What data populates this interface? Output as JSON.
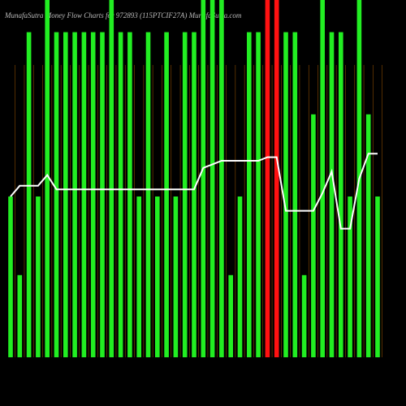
{
  "chart_data": {
    "type": "bar",
    "title": "MunafaSutra  Money Flow  Charts for 972893          (115PTCIF27A) MunafaSutra.com",
    "ylim": [
      0,
      100
    ],
    "values": [
      45,
      23,
      91,
      45,
      100,
      91,
      91,
      91,
      91,
      91,
      91,
      100,
      91,
      91,
      45,
      91,
      45,
      91,
      45,
      91,
      91,
      100,
      100,
      100,
      23,
      45,
      91,
      91,
      100,
      100,
      91,
      91,
      23,
      68,
      100,
      91,
      91,
      45,
      100,
      68,
      45
    ],
    "colors": [
      "#22ee22",
      "#22ee22",
      "#22ee22",
      "#22ee22",
      "#22ee22",
      "#22ee22",
      "#22ee22",
      "#22ee22",
      "#22ee22",
      "#22ee22",
      "#22ee22",
      "#22ee22",
      "#22ee22",
      "#22ee22",
      "#22ee22",
      "#22ee22",
      "#22ee22",
      "#22ee22",
      "#22ee22",
      "#22ee22",
      "#22ee22",
      "#22ee22",
      "#22ee22",
      "#22ee22",
      "#22ee22",
      "#22ee22",
      "#22ee22",
      "#22ee22",
      "#ff1111",
      "#ff1111",
      "#22ee22",
      "#22ee22",
      "#22ee22",
      "#22ee22",
      "#22ee22",
      "#22ee22",
      "#22ee22",
      "#22ee22",
      "#22ee22",
      "#22ee22",
      "#22ee22"
    ],
    "line": {
      "color": "#ffffff",
      "values": [
        45,
        48,
        48,
        48,
        51,
        47,
        47,
        47,
        47,
        47,
        47,
        47,
        47,
        47,
        47,
        47,
        47,
        47,
        47,
        47,
        47,
        53,
        54,
        55,
        55,
        55,
        55,
        55,
        56,
        56,
        41,
        41,
        41,
        41,
        46,
        52,
        36,
        36,
        50,
        57,
        57
      ]
    },
    "grid_color": "#8a4a00"
  }
}
